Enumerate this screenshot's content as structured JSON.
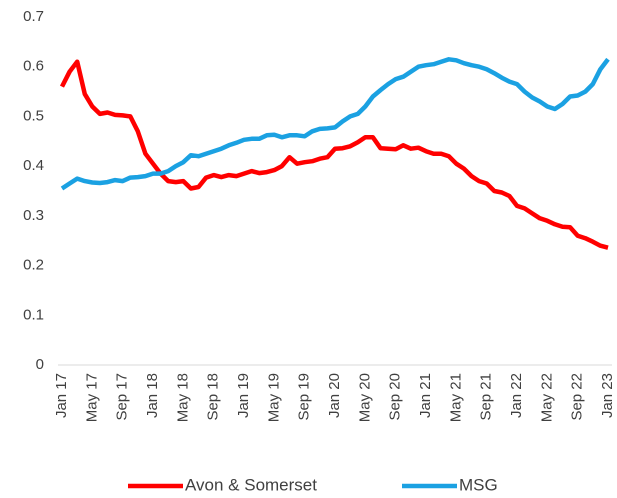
{
  "chart_data": {
    "type": "line",
    "categories": [
      "Jan 17",
      null,
      null,
      null,
      "May 17",
      null,
      null,
      null,
      "Sep 17",
      null,
      null,
      null,
      "Jan 18",
      null,
      null,
      null,
      "May 18",
      null,
      null,
      null,
      "Sep 18",
      null,
      null,
      null,
      "Jan 19",
      null,
      null,
      null,
      "May 19",
      null,
      null,
      null,
      "Sep 19",
      null,
      null,
      null,
      "Jan 20",
      null,
      null,
      null,
      "May 20",
      null,
      null,
      null,
      "Sep 20",
      null,
      null,
      null,
      "Jan 21",
      null,
      null,
      null,
      "May 21",
      null,
      null,
      null,
      "Sep 21",
      null,
      null,
      null,
      "Jan 22",
      null,
      null,
      null,
      "May 22",
      null,
      null,
      null,
      "Sep 22",
      null,
      null,
      null,
      "Jan 23"
    ],
    "series": [
      {
        "name": "Avon & Somerset",
        "color": "#ff0000",
        "values": [
          0.56,
          0.59,
          0.61,
          0.545,
          0.52,
          0.505,
          0.508,
          0.503,
          0.502,
          0.5,
          0.47,
          0.425,
          0.405,
          0.385,
          0.37,
          0.368,
          0.37,
          0.355,
          0.358,
          0.377,
          0.382,
          0.378,
          0.382,
          0.38,
          0.385,
          0.39,
          0.386,
          0.388,
          0.392,
          0.4,
          0.418,
          0.405,
          0.408,
          0.41,
          0.415,
          0.418,
          0.435,
          0.436,
          0.44,
          0.448,
          0.458,
          0.458,
          0.436,
          0.435,
          0.434,
          0.442,
          0.435,
          0.437,
          0.43,
          0.425,
          0.425,
          0.42,
          0.405,
          0.395,
          0.38,
          0.37,
          0.365,
          0.35,
          0.347,
          0.34,
          0.32,
          0.315,
          0.305,
          0.295,
          0.29,
          0.283,
          0.278,
          0.277,
          0.26,
          0.255,
          0.248,
          0.24,
          0.236
        ]
      },
      {
        "name": "MSG",
        "color": "#1ba1e2",
        "values": [
          0.355,
          0.365,
          0.375,
          0.37,
          0.367,
          0.366,
          0.368,
          0.372,
          0.37,
          0.377,
          0.378,
          0.38,
          0.385,
          0.385,
          0.39,
          0.4,
          0.408,
          0.422,
          0.42,
          0.425,
          0.43,
          0.435,
          0.442,
          0.447,
          0.453,
          0.455,
          0.455,
          0.462,
          0.463,
          0.458,
          0.462,
          0.462,
          0.46,
          0.47,
          0.475,
          0.476,
          0.478,
          0.49,
          0.5,
          0.505,
          0.52,
          0.54,
          0.553,
          0.565,
          0.575,
          0.58,
          0.59,
          0.6,
          0.603,
          0.605,
          0.61,
          0.615,
          0.613,
          0.607,
          0.603,
          0.6,
          0.595,
          0.587,
          0.578,
          0.57,
          0.565,
          0.55,
          0.538,
          0.53,
          0.52,
          0.515,
          0.525,
          0.54,
          0.542,
          0.55,
          0.565,
          0.595,
          0.615
        ]
      }
    ],
    "ylim": [
      0,
      0.7
    ],
    "yticks": [
      0,
      0.1,
      0.2,
      0.3,
      0.4,
      0.5,
      0.6,
      0.7
    ],
    "legend": "bottom"
  }
}
